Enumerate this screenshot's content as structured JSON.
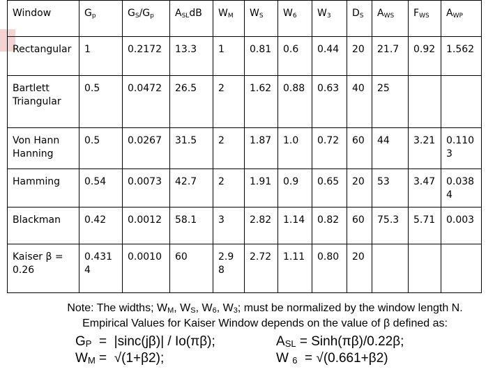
{
  "table": {
    "header": [
      [
        {
          "text": "Window"
        }
      ],
      [
        {
          "text": "G"
        },
        {
          "sub": "p"
        }
      ],
      [
        {
          "text": "G"
        },
        {
          "sub": "S"
        },
        {
          "text": "/G"
        },
        {
          "sub": "p"
        }
      ],
      [
        {
          "text": "A"
        },
        {
          "sub": "SL"
        },
        {
          "text": "dB"
        }
      ],
      [
        {
          "text": "W"
        },
        {
          "sub": "M"
        }
      ],
      [
        {
          "text": "W"
        },
        {
          "sub": "S"
        }
      ],
      [
        {
          "text": "W"
        },
        {
          "sub": "6"
        }
      ],
      [
        {
          "text": "W"
        },
        {
          "sub": "3"
        }
      ],
      [
        {
          "text": "D"
        },
        {
          "sub": "S"
        }
      ],
      [
        {
          "text": "A"
        },
        {
          "sub": "WS"
        }
      ],
      [
        {
          "text": "F"
        },
        {
          "sub": "WS"
        }
      ],
      [
        {
          "text": "A"
        },
        {
          "sub": "WP"
        }
      ]
    ],
    "rows": [
      [
        "Rectangular",
        "1",
        "0.2172",
        "13.3",
        "1",
        "0.81",
        "0.6",
        "0.44",
        "20",
        "21.7",
        "0.92",
        "1.562"
      ],
      [
        "Bartlett Triangular",
        "0.5",
        "0.0472",
        "26.5",
        "2",
        "1.62",
        "0.88",
        "0.63",
        "40",
        "25",
        null,
        null
      ],
      [
        "Von Hann Hanning",
        "0.5",
        "0.0267",
        "31.5",
        "2",
        "1.87",
        "1.0",
        "0.72",
        "60",
        "44",
        "3.21",
        "0.1103"
      ],
      [
        "Hamming",
        "0.54",
        "0.0073",
        "42.7",
        "2",
        "1.91",
        "0.9",
        "0.65",
        "20",
        "53",
        "3.47",
        "0.0384"
      ],
      [
        "Blackman",
        "0.42",
        "0.0012",
        "58.1",
        "3",
        "2.82",
        "1.14",
        "0.82",
        "60",
        "75.3",
        "5.71",
        "0.003"
      ],
      [
        "Kaiser β = 0.26",
        "0.4314",
        "0.0010",
        "60",
        "2.98",
        "2.72",
        "1.11",
        "0.80",
        "20",
        null,
        null,
        null
      ]
    ]
  },
  "note": {
    "line1": [
      {
        "text": "Note:  The widths; W"
      },
      {
        "sub": "M"
      },
      {
        "text": ", W"
      },
      {
        "sub": "S"
      },
      {
        "text": ", W"
      },
      {
        "sub": "6"
      },
      {
        "text": ", W"
      },
      {
        "sub": "3"
      },
      {
        "text": ";  must be normalized by the window length N."
      }
    ],
    "line2": [
      {
        "text": "Empirical Values for Kaiser  Window depends on the value of β defined as:"
      }
    ]
  },
  "formulas": {
    "gp": [
      {
        "text": "G"
      },
      {
        "sub": "P"
      },
      {
        "text": "  =  |sinc(jβ)| / Io(πβ);"
      }
    ],
    "asl": [
      {
        "text": "A"
      },
      {
        "sub": "SL"
      },
      {
        "text": " = Sinh(πβ)/0.22β;"
      }
    ],
    "wm": [
      {
        "text": "W"
      },
      {
        "sub": "M"
      },
      {
        "text": " =  √(1+β2);"
      }
    ],
    "w6": [
      {
        "text": "W "
      },
      {
        "sub": "6"
      },
      {
        "text": "  = √(0.661+β2)"
      }
    ]
  }
}
